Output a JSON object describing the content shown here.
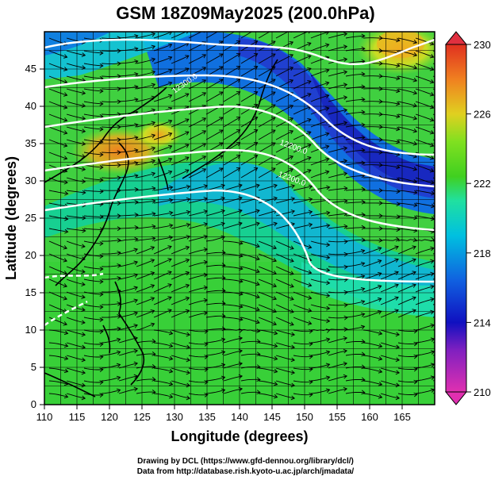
{
  "title": "GSM 18Z09May2025 (200.0hPa)",
  "map": {
    "xlabel": "Longitude (degrees)",
    "ylabel": "Latitude (degrees)",
    "lon_range": [
      110,
      170
    ],
    "lat_range": [
      0,
      50
    ],
    "lon_ticks": [
      "110",
      "115",
      "120",
      "125",
      "130",
      "135",
      "140",
      "145",
      "150",
      "155",
      "160",
      "165"
    ],
    "lat_ticks": [
      "0",
      "5",
      "10",
      "15",
      "20",
      "25",
      "30",
      "35",
      "40",
      "45"
    ],
    "contour_labels": [
      "12200.0",
      "12300.0",
      "12200.0"
    ]
  },
  "colorbar": {
    "ticks": [
      "210",
      "214",
      "218",
      "222",
      "226",
      "230"
    ],
    "colors": [
      "#e040c0",
      "#1010c0",
      "#0090e0",
      "#20e0a0",
      "#40d020",
      "#e0d020",
      "#f08020",
      "#e03020"
    ]
  },
  "credits": {
    "line1": "Drawing by DCL (https://www.gfd-dennou.org/library/dcl/)",
    "line2": "Data from http://database.rish.kyoto-u.ac.jp/arch/jmadata/"
  }
}
